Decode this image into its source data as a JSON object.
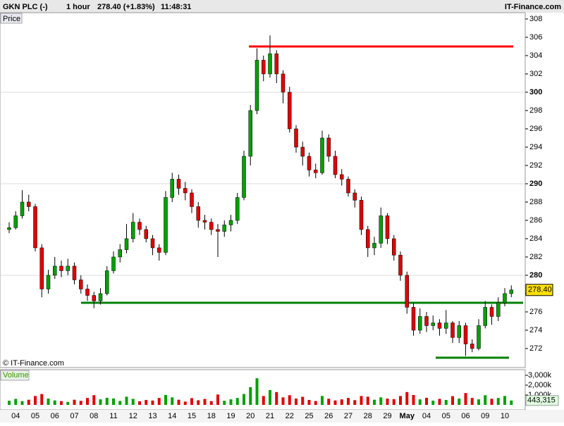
{
  "chart_data": {
    "type": "candlestick",
    "header": {
      "symbol": "GKN PLC (-)",
      "interval": "1 hour",
      "last": "278.40 (+1.83%)",
      "time": "11:48:31",
      "source": "IT-Finance.com"
    },
    "price_label": "Price",
    "copyright": "© IT-Finance.com",
    "volume_label": "Volume",
    "categories": [
      "04",
      "05",
      "06",
      "07",
      "08",
      "11",
      "12",
      "13",
      "14",
      "15",
      "18",
      "19",
      "20",
      "21",
      "22",
      "25",
      "26",
      "27",
      "28",
      "29",
      "May",
      "04",
      "05",
      "06",
      "09",
      "10"
    ],
    "up_color": "#00a000",
    "down_color": "#e00000",
    "candles": [
      [
        285.0,
        285.8,
        284.6,
        285.2
      ],
      [
        285.2,
        287.0,
        285.0,
        286.5
      ],
      [
        286.5,
        289.3,
        286.2,
        288.0
      ],
      [
        288.0,
        288.8,
        287.0,
        287.5
      ],
      [
        287.5,
        287.8,
        282.6,
        283.0
      ],
      [
        283.0,
        283.4,
        277.6,
        278.5
      ],
      [
        278.5,
        280.6,
        278.0,
        280.0
      ],
      [
        280.0,
        282.0,
        279.6,
        281.0
      ],
      [
        281.0,
        281.6,
        279.8,
        280.5
      ],
      [
        280.5,
        281.8,
        280.0,
        281.0
      ],
      [
        281.0,
        281.4,
        279.0,
        279.5
      ],
      [
        279.5,
        280.0,
        278.0,
        278.5
      ],
      [
        278.5,
        279.0,
        277.2,
        277.8
      ],
      [
        277.8,
        278.2,
        276.4,
        277.2
      ],
      [
        277.2,
        278.6,
        276.8,
        278.0
      ],
      [
        278.0,
        281.0,
        277.8,
        280.5
      ],
      [
        280.5,
        282.6,
        280.2,
        282.0
      ],
      [
        282.0,
        283.4,
        281.4,
        282.8
      ],
      [
        282.8,
        285.6,
        282.4,
        284.0
      ],
      [
        284.0,
        286.8,
        283.6,
        285.8
      ],
      [
        285.8,
        286.2,
        284.4,
        285.0
      ],
      [
        285.0,
        285.4,
        283.6,
        284.0
      ],
      [
        284.0,
        284.4,
        282.2,
        283.0
      ],
      [
        283.0,
        283.4,
        281.6,
        282.5
      ],
      [
        282.5,
        289.2,
        282.2,
        288.5
      ],
      [
        288.5,
        291.2,
        288.0,
        290.5
      ],
      [
        290.5,
        291.0,
        288.8,
        289.5
      ],
      [
        289.5,
        290.2,
        288.2,
        289.0
      ],
      [
        289.0,
        289.4,
        286.8,
        287.5
      ],
      [
        287.5,
        288.0,
        285.2,
        286.0
      ],
      [
        286.0,
        286.6,
        285.0,
        285.8
      ],
      [
        285.8,
        286.2,
        284.4,
        285.0
      ],
      [
        285.0,
        285.6,
        282.0,
        284.8
      ],
      [
        284.8,
        286.0,
        284.2,
        285.5
      ],
      [
        285.5,
        286.6,
        284.8,
        286.0
      ],
      [
        286.0,
        289.0,
        285.6,
        288.5
      ],
      [
        288.5,
        293.6,
        288.2,
        293.0
      ],
      [
        293.0,
        298.6,
        292.0,
        298.0
      ],
      [
        298.0,
        304.8,
        297.6,
        303.5
      ],
      [
        303.5,
        304.0,
        301.2,
        302.0
      ],
      [
        302.0,
        306.2,
        301.6,
        304.2
      ],
      [
        304.2,
        304.6,
        301.0,
        302.0
      ],
      [
        302.0,
        302.4,
        298.8,
        300.0
      ],
      [
        300.0,
        300.6,
        295.6,
        296.0
      ],
      [
        296.0,
        296.4,
        293.4,
        294.0
      ],
      [
        294.0,
        294.6,
        292.0,
        293.0
      ],
      [
        293.0,
        293.4,
        290.8,
        291.5
      ],
      [
        291.5,
        292.2,
        290.6,
        291.2
      ],
      [
        291.2,
        295.8,
        291.0,
        295.0
      ],
      [
        295.0,
        295.4,
        292.4,
        293.0
      ],
      [
        293.0,
        293.6,
        290.6,
        291.0
      ],
      [
        291.0,
        291.6,
        289.8,
        290.5
      ],
      [
        290.5,
        290.8,
        288.6,
        289.0
      ],
      [
        289.0,
        289.4,
        287.4,
        288.2
      ],
      [
        288.2,
        288.6,
        284.4,
        285.0
      ],
      [
        285.0,
        285.4,
        282.0,
        283.0
      ],
      [
        283.0,
        284.2,
        282.2,
        283.5
      ],
      [
        283.5,
        287.4,
        283.0,
        286.5
      ],
      [
        286.5,
        286.8,
        283.4,
        284.0
      ],
      [
        284.0,
        284.4,
        281.6,
        282.2
      ],
      [
        282.2,
        282.6,
        279.4,
        280.0
      ],
      [
        280.0,
        280.4,
        275.8,
        276.5
      ],
      [
        276.5,
        277.0,
        273.4,
        274.0
      ],
      [
        274.0,
        276.4,
        273.6,
        275.5
      ],
      [
        275.5,
        276.0,
        273.8,
        274.5
      ],
      [
        274.5,
        275.6,
        274.0,
        274.8
      ],
      [
        274.8,
        275.2,
        273.4,
        274.2
      ],
      [
        274.2,
        276.2,
        273.6,
        274.8
      ],
      [
        274.8,
        275.0,
        272.6,
        273.2
      ],
      [
        273.2,
        275.0,
        272.6,
        274.5
      ],
      [
        274.5,
        274.8,
        271.2,
        272.5
      ],
      [
        272.5,
        273.0,
        271.6,
        272.0
      ],
      [
        272.0,
        275.2,
        271.8,
        274.5
      ],
      [
        274.5,
        277.2,
        274.2,
        276.5
      ],
      [
        276.5,
        276.8,
        274.6,
        275.5
      ],
      [
        275.5,
        277.6,
        275.0,
        277.0
      ],
      [
        277.0,
        278.6,
        276.6,
        278.0
      ],
      [
        278.0,
        278.9,
        277.6,
        278.4
      ]
    ],
    "volume": [
      420,
      610,
      380,
      520,
      900,
      1100,
      640,
      450,
      380,
      300,
      520,
      410,
      700,
      980,
      560,
      720,
      650,
      400,
      830,
      610,
      360,
      500,
      440,
      700,
      1000,
      760,
      520,
      330,
      680,
      470,
      600,
      380,
      1050,
      420,
      560,
      700,
      1100,
      1800,
      2700,
      900,
      1500,
      1300,
      760,
      980,
      640,
      820,
      500,
      390,
      900,
      620,
      450,
      560,
      700,
      480,
      900,
      830,
      520,
      760,
      640,
      580,
      900,
      1300,
      1000,
      560,
      720,
      430,
      610,
      500,
      880,
      640,
      1200,
      700,
      560,
      980,
      620,
      700,
      900,
      443.315
    ],
    "ylim": [
      269.92,
      308.69
    ],
    "yticks": [
      272,
      274,
      276,
      278,
      280,
      282,
      284,
      286,
      288,
      290,
      292,
      294,
      296,
      298,
      300,
      302,
      304,
      306,
      308
    ],
    "grid_values": [
      280,
      290,
      300
    ],
    "vol_ylim": [
      -500,
      3571
    ],
    "vol_ticks": [
      {
        "value": 1000,
        "label": "1,000k"
      },
      {
        "value": 2000,
        "label": "2,000k"
      },
      {
        "value": 3000,
        "label": "3,000k"
      }
    ],
    "price_tag": {
      "value": 278.4,
      "label": "278.40"
    },
    "volume_tag": {
      "value": 443.315,
      "label": "443,315"
    },
    "levels": [
      {
        "value": 305,
        "color": "#ff0000"
      },
      {
        "value": 277,
        "color": "#008000"
      },
      {
        "value": 271,
        "color": "#008000"
      }
    ]
  }
}
